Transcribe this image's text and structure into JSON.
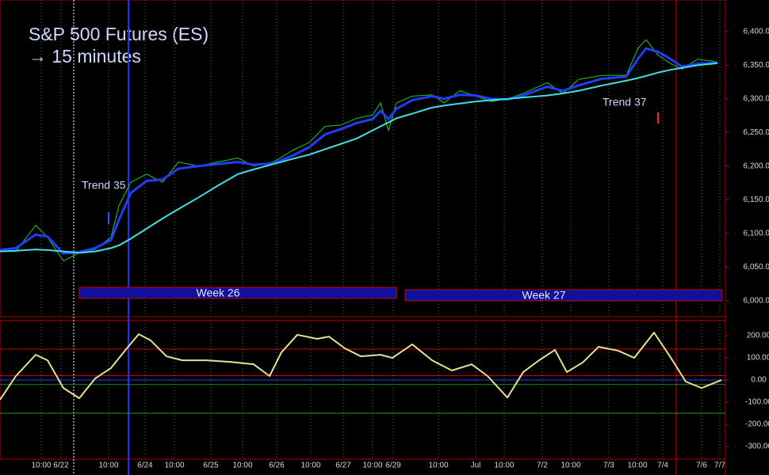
{
  "chart_data": [
    {
      "type": "line",
      "title": "S&P 500 Futures (ES)",
      "subtitle": "→ 15 minutes",
      "x": [
        0,
        20,
        45,
        60,
        80,
        100,
        120,
        140,
        150,
        165,
        185,
        205,
        225,
        250,
        275,
        300,
        320,
        345,
        370,
        390,
        410,
        430,
        450,
        470,
        480,
        490,
        500,
        520,
        545,
        560,
        580,
        600,
        620,
        640,
        660,
        690,
        710,
        730,
        760,
        790,
        805,
        815,
        830,
        845,
        860,
        880,
        905
      ],
      "series": [
        {
          "color": "#22cc22",
          "width": 1,
          "values": [
            6073,
            6073,
            6112,
            6094,
            6059,
            6071,
            6076,
            6094,
            6141,
            6176,
            6188,
            6176,
            6206,
            6200,
            6206,
            6212,
            6200,
            6206,
            6224,
            6235,
            6259,
            6261,
            6271,
            6276,
            6294,
            6253,
            6294,
            6304,
            6306,
            6294,
            6312,
            6304,
            6296,
            6300,
            6308,
            6324,
            6308,
            6329,
            6335,
            6335,
            6376,
            6388,
            6365,
            6353,
            6344,
            6359,
            6355
          ]
        },
        {
          "color": "#1f3cff",
          "width": 3,
          "values": [
            6075,
            6078,
            6098,
            6095,
            6070,
            6072,
            6078,
            6090,
            6120,
            6160,
            6178,
            6180,
            6196,
            6200,
            6203,
            6206,
            6202,
            6204,
            6216,
            6228,
            6247,
            6255,
            6264,
            6270,
            6282,
            6270,
            6285,
            6298,
            6304,
            6300,
            6306,
            6305,
            6300,
            6299,
            6305,
            6318,
            6312,
            6320,
            6330,
            6333,
            6360,
            6375,
            6370,
            6360,
            6348,
            6352,
            6354
          ]
        },
        {
          "color": "#40e0e0",
          "width": 2,
          "values": [
            6073,
            6074,
            6076,
            6075,
            6073,
            6071,
            6073,
            6078,
            6082,
            6092,
            6107,
            6122,
            6136,
            6153,
            6171,
            6188,
            6195,
            6203,
            6211,
            6217,
            6225,
            6233,
            6241,
            6253,
            6259,
            6265,
            6271,
            6278,
            6287,
            6290,
            6293,
            6296,
            6298,
            6300,
            6302,
            6305,
            6308,
            6312,
            6320,
            6327,
            6331,
            6334,
            6339,
            6343,
            6346,
            6350,
            6353
          ]
        }
      ],
      "xlim": [
        0,
        915
      ],
      "ylim": [
        5976,
        6447
      ],
      "yticks": [
        {
          "value": 6000,
          "label": "6,000.00"
        },
        {
          "value": 6050,
          "label": "6,050.00"
        },
        {
          "value": 6100,
          "label": "6,100.00"
        },
        {
          "value": 6150,
          "label": "6,150.00"
        },
        {
          "value": 6200,
          "label": "6,200.00"
        },
        {
          "value": 6250,
          "label": "6,250.00"
        },
        {
          "value": 6300,
          "label": "6,300.00"
        },
        {
          "value": 6350,
          "label": "6,350.00"
        },
        {
          "value": 6400,
          "label": "6,400.00"
        }
      ],
      "markers": [
        {
          "x": 93,
          "color": "#ffffff"
        },
        {
          "x": 162,
          "color": "#2030ff"
        },
        {
          "x": 853,
          "color": "#e00000"
        }
      ],
      "annotations": [
        "Trend 35",
        "Trend 37"
      ],
      "weeks": [
        "Week 26",
        "Week 27"
      ]
    },
    {
      "type": "line",
      "x": [
        0,
        20,
        45,
        60,
        80,
        100,
        120,
        140,
        160,
        175,
        190,
        210,
        230,
        260,
        290,
        320,
        340,
        355,
        375,
        400,
        415,
        435,
        455,
        480,
        495,
        520,
        545,
        570,
        595,
        615,
        640,
        660,
        680,
        700,
        715,
        735,
        755,
        780,
        800,
        825,
        845,
        865,
        885,
        910
      ],
      "series": [
        {
          "color": "#e8e090",
          "width": 2,
          "values": [
            -89,
            18,
            114,
            89,
            -36,
            -82,
            7,
            54,
            143,
            207,
            179,
            107,
            89,
            89,
            82,
            71,
            18,
            125,
            204,
            186,
            196,
            143,
            107,
            114,
            100,
            161,
            89,
            43,
            71,
            18,
            -79,
            36,
            89,
            136,
            36,
            79,
            150,
            132,
            100,
            214,
            107,
            -7,
            -36,
            0
          ]
        }
      ],
      "xlim": [
        0,
        915
      ],
      "ylim": [
        -357,
        268
      ],
      "yticks": [
        {
          "value": 200,
          "label": "200.00"
        },
        {
          "value": 100,
          "label": "100.00"
        },
        {
          "value": 0,
          "label": "0.00"
        },
        {
          "value": -100,
          "label": "-100.00"
        },
        {
          "value": -200,
          "label": "-200.00"
        },
        {
          "value": -300,
          "label": "-300.00"
        }
      ],
      "levels": [
        {
          "value": 140,
          "color": "#d00000"
        },
        {
          "value": 20,
          "color": "#d00000"
        },
        {
          "value": 0,
          "color": "#2040ff"
        },
        {
          "value": -20,
          "color": "#208020"
        },
        {
          "value": -150,
          "color": "#20a020"
        }
      ],
      "xticks": [
        {
          "value": 52,
          "label": "10:00"
        },
        {
          "value": 77,
          "label": "6/22"
        },
        {
          "value": 137,
          "label": "10:00"
        },
        {
          "value": 183,
          "label": "6/24"
        },
        {
          "value": 220,
          "label": "10:00"
        },
        {
          "value": 266,
          "label": "6/25"
        },
        {
          "value": 306,
          "label": "10:00"
        },
        {
          "value": 349,
          "label": "6/26"
        },
        {
          "value": 392,
          "label": "10:00"
        },
        {
          "value": 433,
          "label": "6/27"
        },
        {
          "value": 470,
          "label": "10:00"
        },
        {
          "value": 496,
          "label": "6/29"
        },
        {
          "value": 553,
          "label": "10:00"
        },
        {
          "value": 600,
          "label": "Jul"
        },
        {
          "value": 636,
          "label": "10:00"
        },
        {
          "value": 684,
          "label": "7/2"
        },
        {
          "value": 720,
          "label": "10:00"
        },
        {
          "value": 768,
          "label": "7/3"
        },
        {
          "value": 804,
          "label": "10:00"
        },
        {
          "value": 836,
          "label": "7/4"
        },
        {
          "value": 885,
          "label": "7/6"
        },
        {
          "value": 908,
          "label": "7/7"
        }
      ]
    }
  ]
}
